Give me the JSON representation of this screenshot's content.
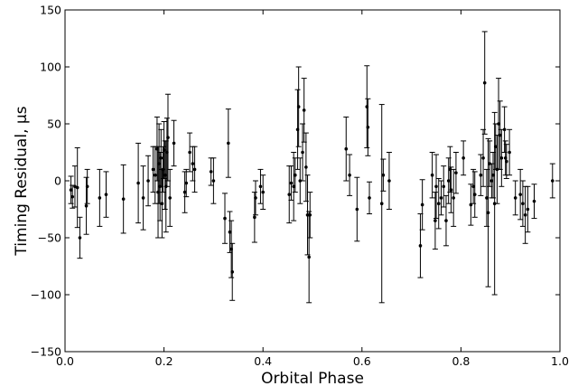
{
  "chart_data": {
    "type": "scatter",
    "title": "",
    "xlabel": "Orbital Phase",
    "ylabel": "Timing Residual, μs",
    "xlim": [
      0.0,
      1.0
    ],
    "ylim": [
      -150,
      150
    ],
    "xticks": [
      "0.0",
      "0.2",
      "0.4",
      "0.6",
      "0.8",
      "1.0"
    ],
    "yticks": [
      "−150",
      "−100",
      "−50",
      "0",
      "50",
      "100",
      "150"
    ],
    "grid": false,
    "legend": "none",
    "marker_color": "#000000",
    "points": [
      {
        "x": 0.012,
        "y": -8,
        "err": 12
      },
      {
        "x": 0.015,
        "y": -14,
        "err": 10
      },
      {
        "x": 0.02,
        "y": -5,
        "err": 18
      },
      {
        "x": 0.025,
        "y": -6,
        "err": 35
      },
      {
        "x": 0.03,
        "y": -50,
        "err": 18
      },
      {
        "x": 0.043,
        "y": -22,
        "err": 25
      },
      {
        "x": 0.045,
        "y": -5,
        "err": 15
      },
      {
        "x": 0.07,
        "y": -15,
        "err": 25
      },
      {
        "x": 0.083,
        "y": -12,
        "err": 20
      },
      {
        "x": 0.118,
        "y": -16,
        "err": 30
      },
      {
        "x": 0.148,
        "y": -2,
        "err": 35
      },
      {
        "x": 0.158,
        "y": -15,
        "err": 28
      },
      {
        "x": 0.168,
        "y": 0,
        "err": 22
      },
      {
        "x": 0.178,
        "y": 10,
        "err": 20
      },
      {
        "x": 0.182,
        "y": 5,
        "err": 25
      },
      {
        "x": 0.186,
        "y": 28,
        "err": 28
      },
      {
        "x": 0.188,
        "y": -10,
        "err": 40
      },
      {
        "x": 0.19,
        "y": 15,
        "err": 35
      },
      {
        "x": 0.192,
        "y": -5,
        "err": 30
      },
      {
        "x": 0.194,
        "y": 20,
        "err": 25
      },
      {
        "x": 0.196,
        "y": -20,
        "err": 30
      },
      {
        "x": 0.198,
        "y": 10,
        "err": 20
      },
      {
        "x": 0.2,
        "y": 27,
        "err": 25
      },
      {
        "x": 0.202,
        "y": 5,
        "err": 30
      },
      {
        "x": 0.204,
        "y": -5,
        "err": 40
      },
      {
        "x": 0.206,
        "y": 25,
        "err": 30
      },
      {
        "x": 0.208,
        "y": 38,
        "err": 38
      },
      {
        "x": 0.212,
        "y": -15,
        "err": 25
      },
      {
        "x": 0.22,
        "y": 33,
        "err": 20
      },
      {
        "x": 0.242,
        "y": -10,
        "err": 18
      },
      {
        "x": 0.245,
        "y": -2,
        "err": 12
      },
      {
        "x": 0.252,
        "y": 25,
        "err": 17
      },
      {
        "x": 0.258,
        "y": 15,
        "err": 15
      },
      {
        "x": 0.262,
        "y": 10,
        "err": 20
      },
      {
        "x": 0.295,
        "y": 8,
        "err": 12
      },
      {
        "x": 0.3,
        "y": 0,
        "err": 20
      },
      {
        "x": 0.323,
        "y": -33,
        "err": 22
      },
      {
        "x": 0.33,
        "y": 33,
        "err": 30
      },
      {
        "x": 0.333,
        "y": -45,
        "err": 18
      },
      {
        "x": 0.336,
        "y": -60,
        "err": 25
      },
      {
        "x": 0.338,
        "y": -80,
        "err": 25
      },
      {
        "x": 0.383,
        "y": -32,
        "err": 22
      },
      {
        "x": 0.385,
        "y": -15,
        "err": 15
      },
      {
        "x": 0.395,
        "y": -5,
        "err": 15
      },
      {
        "x": 0.4,
        "y": -10,
        "err": 15
      },
      {
        "x": 0.453,
        "y": -12,
        "err": 25
      },
      {
        "x": 0.457,
        "y": -2,
        "err": 15
      },
      {
        "x": 0.462,
        "y": -5,
        "err": 30
      },
      {
        "x": 0.465,
        "y": 5,
        "err": 15
      },
      {
        "x": 0.47,
        "y": 45,
        "err": 35
      },
      {
        "x": 0.472,
        "y": 65,
        "err": 35
      },
      {
        "x": 0.475,
        "y": 0,
        "err": 20
      },
      {
        "x": 0.48,
        "y": 25,
        "err": 25
      },
      {
        "x": 0.483,
        "y": 62,
        "err": 28
      },
      {
        "x": 0.487,
        "y": 12,
        "err": 30
      },
      {
        "x": 0.49,
        "y": -30,
        "err": 35
      },
      {
        "x": 0.493,
        "y": -67,
        "err": 40
      },
      {
        "x": 0.495,
        "y": -30,
        "err": 20
      },
      {
        "x": 0.568,
        "y": 28,
        "err": 28
      },
      {
        "x": 0.575,
        "y": 5,
        "err": 18
      },
      {
        "x": 0.59,
        "y": -25,
        "err": 28
      },
      {
        "x": 0.61,
        "y": 65,
        "err": 36
      },
      {
        "x": 0.612,
        "y": 47,
        "err": 25
      },
      {
        "x": 0.615,
        "y": -15,
        "err": 14
      },
      {
        "x": 0.64,
        "y": -20,
        "err": 87
      },
      {
        "x": 0.643,
        "y": 5,
        "err": 14
      },
      {
        "x": 0.655,
        "y": 0,
        "err": 25
      },
      {
        "x": 0.718,
        "y": -57,
        "err": 28
      },
      {
        "x": 0.722,
        "y": -21,
        "err": 22
      },
      {
        "x": 0.742,
        "y": 5,
        "err": 20
      },
      {
        "x": 0.748,
        "y": -35,
        "err": 25
      },
      {
        "x": 0.75,
        "y": -5,
        "err": 28
      },
      {
        "x": 0.755,
        "y": -20,
        "err": 22
      },
      {
        "x": 0.76,
        "y": -15,
        "err": 15
      },
      {
        "x": 0.765,
        "y": -5,
        "err": 18
      },
      {
        "x": 0.77,
        "y": -35,
        "err": 22
      },
      {
        "x": 0.775,
        "y": 0,
        "err": 20
      },
      {
        "x": 0.778,
        "y": 10,
        "err": 20
      },
      {
        "x": 0.78,
        "y": -8,
        "err": 20
      },
      {
        "x": 0.785,
        "y": -15,
        "err": 25
      },
      {
        "x": 0.79,
        "y": 7,
        "err": 18
      },
      {
        "x": 0.805,
        "y": 20,
        "err": 15
      },
      {
        "x": 0.82,
        "y": -21,
        "err": 18
      },
      {
        "x": 0.825,
        "y": -5,
        "err": 15
      },
      {
        "x": 0.828,
        "y": -12,
        "err": 20
      },
      {
        "x": 0.84,
        "y": 5,
        "err": 18
      },
      {
        "x": 0.845,
        "y": 20,
        "err": 25
      },
      {
        "x": 0.848,
        "y": 86,
        "err": 45
      },
      {
        "x": 0.852,
        "y": -15,
        "err": 25
      },
      {
        "x": 0.855,
        "y": -28,
        "err": 65
      },
      {
        "x": 0.858,
        "y": 15,
        "err": 20
      },
      {
        "x": 0.862,
        "y": 0,
        "err": 15
      },
      {
        "x": 0.865,
        "y": 5,
        "err": 20
      },
      {
        "x": 0.868,
        "y": -20,
        "err": 80
      },
      {
        "x": 0.87,
        "y": 30,
        "err": 20
      },
      {
        "x": 0.873,
        "y": 10,
        "err": 30
      },
      {
        "x": 0.876,
        "y": 50,
        "err": 40
      },
      {
        "x": 0.879,
        "y": 40,
        "err": 30
      },
      {
        "x": 0.882,
        "y": 20,
        "err": 25
      },
      {
        "x": 0.888,
        "y": 45,
        "err": 20
      },
      {
        "x": 0.89,
        "y": 20,
        "err": 15
      },
      {
        "x": 0.892,
        "y": 17,
        "err": 15
      },
      {
        "x": 0.898,
        "y": 25,
        "err": 20
      },
      {
        "x": 0.91,
        "y": -15,
        "err": 15
      },
      {
        "x": 0.92,
        "y": -12,
        "err": 22
      },
      {
        "x": 0.925,
        "y": -20,
        "err": 20
      },
      {
        "x": 0.93,
        "y": -30,
        "err": 25
      },
      {
        "x": 0.935,
        "y": -25,
        "err": 20
      },
      {
        "x": 0.948,
        "y": -18,
        "err": 15
      },
      {
        "x": 0.985,
        "y": 0,
        "err": 15
      }
    ]
  }
}
